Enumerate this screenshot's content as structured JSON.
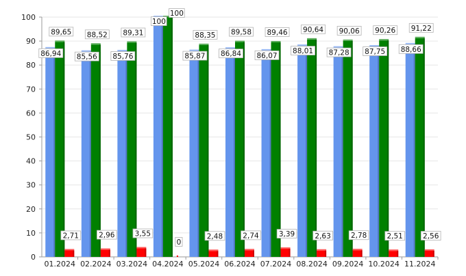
{
  "chart_data": {
    "type": "bar",
    "title": "",
    "xlabel": "",
    "ylabel": "",
    "ylim": [
      0,
      100
    ],
    "yticks": [
      0,
      10,
      20,
      30,
      40,
      50,
      60,
      70,
      80,
      90,
      100
    ],
    "grid": true,
    "decimal_separator": ",",
    "categories": [
      "01.2024",
      "02.2024",
      "03.2024",
      "04.2024",
      "05.2024",
      "06.2024",
      "07.2024",
      "08.2024",
      "09.2024",
      "10.2024",
      "11.2024"
    ],
    "series": [
      {
        "color": "#6495ed",
        "values": [
          86.94,
          85.56,
          85.76,
          100,
          85.87,
          86.84,
          86.07,
          88.01,
          87.28,
          87.75,
          88.66
        ]
      },
      {
        "color": "#008000",
        "values": [
          89.65,
          88.52,
          89.31,
          100,
          88.35,
          89.58,
          89.46,
          90.64,
          90.06,
          90.26,
          91.22
        ]
      },
      {
        "color": "#ff0000",
        "values": [
          2.71,
          2.96,
          3.55,
          0,
          2.48,
          2.74,
          3.39,
          2.63,
          2.78,
          2.51,
          2.56
        ]
      }
    ]
  }
}
